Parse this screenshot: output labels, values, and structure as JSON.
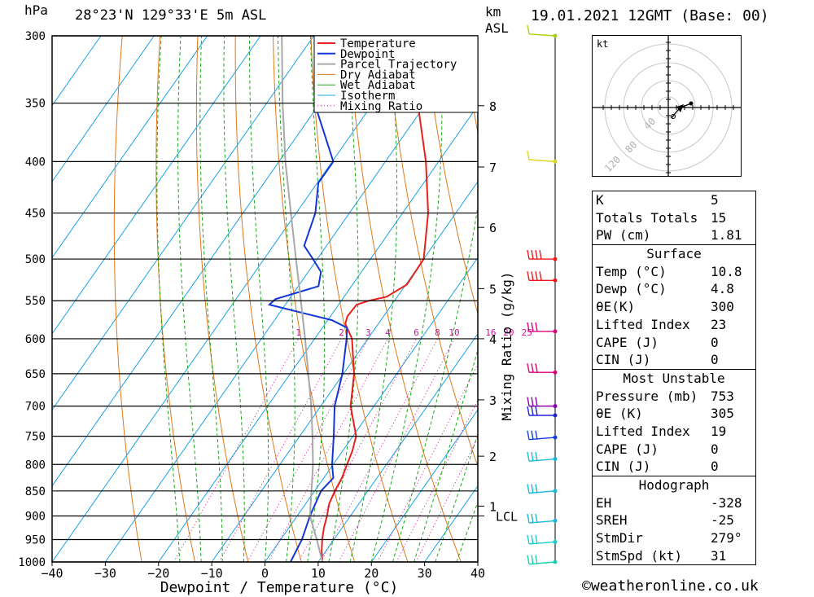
{
  "header": {
    "location": "28°23'N 129°33'E 5m ASL",
    "pressure_unit": "hPa",
    "height_unit": "km",
    "height_ref": "ASL",
    "datetime": "19.01.2021 12GMT (Base: 00)"
  },
  "chart_data": {
    "type": "line",
    "subtype": "skew-T log-p diagram",
    "xlabel": "Dewpoint / Temperature (°C)",
    "ylabel": "hPa",
    "secondary_ylabel": "Mixing Ratio (g/kg)",
    "xlim": [
      -40,
      40
    ],
    "ylim": [
      1000,
      300
    ],
    "y_scale": "log",
    "x_ticks": [
      -40,
      -30,
      -20,
      -10,
      0,
      10,
      20,
      30,
      40
    ],
    "pressure_ticks": [
      300,
      350,
      400,
      450,
      500,
      550,
      600,
      650,
      700,
      750,
      800,
      850,
      900,
      950,
      1000
    ],
    "height_ticks_km": [
      {
        "label": "8",
        "p": 352
      },
      {
        "label": "7",
        "p": 405
      },
      {
        "label": "6",
        "p": 465
      },
      {
        "label": "5",
        "p": 535
      },
      {
        "label": "4",
        "p": 600
      },
      {
        "label": "3",
        "p": 690
      },
      {
        "label": "2",
        "p": 785
      },
      {
        "label": "1",
        "p": 880
      }
    ],
    "lcl": {
      "label": "LCL",
      "p": 900
    },
    "mixing_ratio_labels": [
      "1",
      "2",
      "3",
      "4",
      "6",
      "8",
      "10",
      "16",
      "20",
      "25"
    ],
    "legend": [
      "Temperature",
      "Dewpoint",
      "Parcel Trajectory",
      "Dry Adiabat",
      "Wet Adiabat",
      "Isotherm",
      "Mixing Ratio"
    ],
    "legend_position": "top-right",
    "colors": {
      "temperature": "#e8201e",
      "dewpoint": "#1436d6",
      "parcel": "#a8a8a8",
      "dry_adiabat": "#e07818",
      "wet_adiabat": "#1ca81c",
      "isotherm": "#18a4e8",
      "mixing_ratio": "#d0109c"
    },
    "series": [
      {
        "name": "Temperature",
        "points": [
          [
            1000,
            10.8
          ],
          [
            975,
            9.2
          ],
          [
            950,
            7.8
          ],
          [
            925,
            6.6
          ],
          [
            900,
            5.6
          ],
          [
            875,
            4.4
          ],
          [
            850,
            3.8
          ],
          [
            825,
            3.4
          ],
          [
            800,
            2.6
          ],
          [
            775,
            1.8
          ],
          [
            750,
            0.6
          ],
          [
            700,
            -4.4
          ],
          [
            650,
            -8.0
          ],
          [
            600,
            -13.0
          ],
          [
            580,
            -16.2
          ],
          [
            570,
            -16.8
          ],
          [
            555,
            -16.6
          ],
          [
            550,
            -14.8
          ],
          [
            545,
            -12.0
          ],
          [
            530,
            -9.8
          ],
          [
            500,
            -10.0
          ],
          [
            450,
            -15.2
          ],
          [
            400,
            -22.4
          ],
          [
            350,
            -31.6
          ],
          [
            300,
            -42.0
          ]
        ]
      },
      {
        "name": "Dewpoint",
        "points": [
          [
            1000,
            4.8
          ],
          [
            950,
            4.0
          ],
          [
            900,
            2.4
          ],
          [
            850,
            1.2
          ],
          [
            825,
            1.8
          ],
          [
            800,
            -0.2
          ],
          [
            750,
            -3.6
          ],
          [
            700,
            -7.4
          ],
          [
            650,
            -10.2
          ],
          [
            600,
            -14.0
          ],
          [
            585,
            -15.4
          ],
          [
            575,
            -19.2
          ],
          [
            555,
            -33.0
          ],
          [
            548,
            -32.6
          ],
          [
            532,
            -26.2
          ],
          [
            515,
            -27.6
          ],
          [
            500,
            -30.8
          ],
          [
            485,
            -34.2
          ],
          [
            450,
            -36.4
          ],
          [
            420,
            -39.8
          ],
          [
            400,
            -39.8
          ],
          [
            350,
            -51.0
          ],
          [
            300,
            -59.0
          ]
        ]
      },
      {
        "name": "Parcel Trajectory",
        "points": [
          [
            1000,
            10.8
          ],
          [
            950,
            6.8
          ],
          [
            900,
            2.4
          ],
          [
            850,
            -0.6
          ],
          [
            800,
            -3.8
          ],
          [
            750,
            -7.6
          ],
          [
            700,
            -11.8
          ],
          [
            650,
            -16.6
          ],
          [
            600,
            -21.8
          ],
          [
            550,
            -27.6
          ],
          [
            500,
            -34.0
          ],
          [
            450,
            -41.0
          ],
          [
            400,
            -48.8
          ],
          [
            350,
            -57.0
          ],
          [
            300,
            -66.0
          ]
        ]
      }
    ],
    "wind_barbs": [
      {
        "p": 300,
        "color": "#a8d010"
      },
      {
        "p": 400,
        "color": "#d8d818"
      },
      {
        "p": 500,
        "color": "#f01818"
      },
      {
        "p": 525,
        "color": "#f01818"
      },
      {
        "p": 590,
        "color": "#e0007a"
      },
      {
        "p": 648,
        "color": "#e0007a"
      },
      {
        "p": 700,
        "color": "#8800aa"
      },
      {
        "p": 715,
        "color": "#2020d8"
      },
      {
        "p": 752,
        "color": "#1040e0"
      },
      {
        "p": 790,
        "color": "#18b8d8"
      },
      {
        "p": 850,
        "color": "#18b8d8"
      },
      {
        "p": 910,
        "color": "#18b8d8"
      },
      {
        "p": 955,
        "color": "#18d0d0"
      },
      {
        "p": 1000,
        "color": "#18d0b0"
      }
    ]
  },
  "hodograph": {
    "unit": "kt",
    "ring_labels": [
      "40",
      "80",
      "120"
    ]
  },
  "indices": {
    "rows": [
      {
        "k": "K",
        "v": "5"
      },
      {
        "k": "Totals Totals",
        "v": "15"
      },
      {
        "k": "PW (cm)",
        "v": "1.81"
      }
    ]
  },
  "surface": {
    "title": "Surface",
    "rows": [
      {
        "k": "Temp (°C)",
        "v": "10.8"
      },
      {
        "k": "Dewp (°C)",
        "v": "4.8"
      },
      {
        "k": "θE(K)",
        "v": "300"
      },
      {
        "k": "Lifted Index",
        "v": "23"
      },
      {
        "k": "CAPE (J)",
        "v": "0"
      },
      {
        "k": "CIN (J)",
        "v": "0"
      }
    ]
  },
  "most_unstable": {
    "title": "Most Unstable",
    "rows": [
      {
        "k": "Pressure (mb)",
        "v": "753"
      },
      {
        "k": "θE (K)",
        "v": "305"
      },
      {
        "k": "Lifted Index",
        "v": "19"
      },
      {
        "k": "CAPE (J)",
        "v": "0"
      },
      {
        "k": "CIN (J)",
        "v": "0"
      }
    ]
  },
  "hodograph_stats": {
    "title": "Hodograph",
    "rows": [
      {
        "k": "EH",
        "v": "-328"
      },
      {
        "k": "SREH",
        "v": "-25"
      },
      {
        "k": "StmDir",
        "v": "279°"
      },
      {
        "k": "StmSpd (kt)",
        "v": "31"
      }
    ]
  },
  "credit": "©weatheronline.co.uk"
}
